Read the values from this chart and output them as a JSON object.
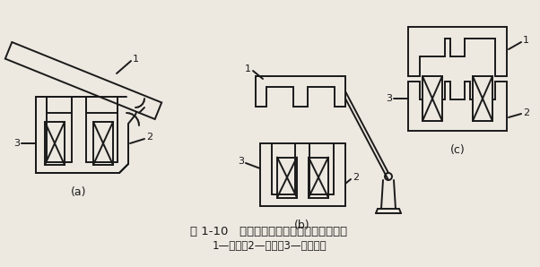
{
  "title_line1": "图 1-10   交流接触器常用的动、静铁心结构",
  "title_line2": "1—衔铁；2—铁心；3—吸引线圈",
  "label_a": "(a)",
  "label_b": "(b)",
  "label_c": "(c)",
  "bg_color": "#ede8e0",
  "line_color": "#1a1a1a",
  "line_width": 1.4,
  "fig_width": 6.02,
  "fig_height": 2.98,
  "dpi": 100
}
